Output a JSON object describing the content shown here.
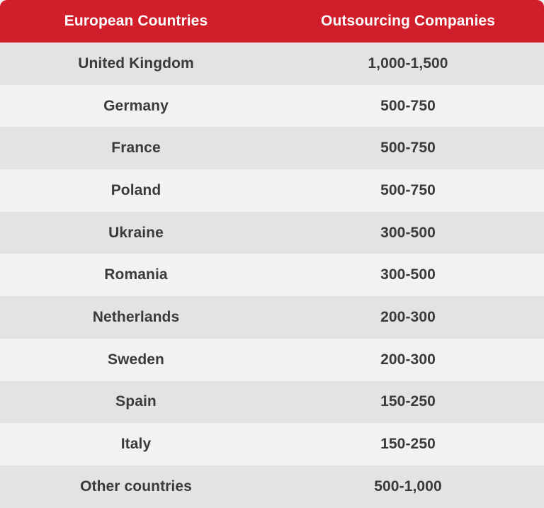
{
  "chart_data": {
    "type": "table",
    "columns": [
      "European Countries",
      "Outsourcing Companies"
    ],
    "rows": [
      [
        "United Kingdom",
        "1,000-1,500"
      ],
      [
        "Germany",
        "500-750"
      ],
      [
        "France",
        "500-750"
      ],
      [
        "Poland",
        "500-750"
      ],
      [
        "Ukraine",
        "300-500"
      ],
      [
        "Romania",
        "300-500"
      ],
      [
        "Netherlands",
        "200-300"
      ],
      [
        "Sweden",
        "200-300"
      ],
      [
        "Spain",
        "150-250"
      ],
      [
        "Italy",
        "150-250"
      ],
      [
        "Other countries",
        "500-1,000"
      ]
    ]
  },
  "colors": {
    "header_bg": "#d01e2a",
    "header_text": "#ffffff",
    "row_dark": "#e3e3e3",
    "row_light": "#f2f2f2",
    "cell_text": "#3a3a3a"
  }
}
